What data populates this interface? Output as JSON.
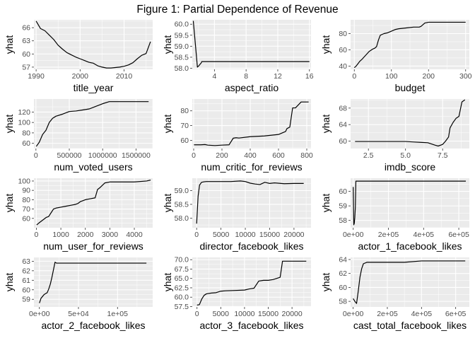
{
  "title": "Figure 1: Partial Dependence of Revenue",
  "colors": {
    "panel_bg": "#ebebeb",
    "grid": "#ffffff",
    "line": "#000000",
    "tick_text": "#4d4d4d"
  },
  "chart_data": [
    {
      "type": "line",
      "xlabel": "title_year",
      "ylabel": "yhat",
      "xlim": [
        1989.5,
        2016.5
      ],
      "ylim": [
        56.5,
        67.8
      ],
      "xticks": [
        1990,
        2000,
        2010
      ],
      "xtick_labels": [
        "1990",
        "2000",
        "2010"
      ],
      "yticks": [
        57,
        60,
        63,
        66
      ],
      "ytick_labels": [
        "57",
        "60",
        "63",
        "66"
      ],
      "x": [
        1990,
        1991,
        1992,
        1993,
        1994,
        1995,
        1996,
        1997,
        1998,
        1999,
        2000,
        2001,
        2002,
        2003,
        2004,
        2005,
        2006,
        2007,
        2008,
        2009,
        2010,
        2011,
        2012,
        2013,
        2014,
        2015,
        2016
      ],
      "y": [
        67.5,
        65.8,
        65.3,
        64.3,
        63.3,
        62.0,
        61.1,
        60.3,
        59.8,
        59.3,
        58.9,
        58.5,
        58.1,
        57.9,
        57.3,
        57.0,
        56.8,
        56.8,
        56.9,
        57.0,
        57.2,
        57.5,
        58.0,
        58.9,
        59.7,
        60.1,
        62.8
      ]
    },
    {
      "type": "line",
      "xlabel": "aspect_ratio",
      "ylabel": "yhat",
      "xlim": [
        1.2,
        16.2
      ],
      "ylim": [
        57.95,
        60.2
      ],
      "xticks": [
        4,
        8,
        12,
        16
      ],
      "xtick_labels": [
        "4",
        "8",
        "12",
        "16"
      ],
      "yticks": [
        58.0,
        58.5,
        59.0,
        59.5,
        60.0
      ],
      "ytick_labels": [
        "58.0",
        "58.5",
        "59.0",
        "59.5",
        "60.0"
      ],
      "x": [
        1.33,
        1.85,
        2.0,
        2.35,
        2.39,
        2.55,
        4.0,
        16.0
      ],
      "y": [
        60.15,
        58.05,
        58.1,
        58.25,
        58.3,
        58.3,
        58.3,
        58.3
      ]
    },
    {
      "type": "line",
      "xlabel": "budget",
      "ylabel": "yhat",
      "xlim": [
        -10,
        310
      ],
      "ylim": [
        36,
        97
      ],
      "xticks": [
        0,
        100,
        200,
        300
      ],
      "xtick_labels": [
        "0",
        "100",
        "200",
        "300"
      ],
      "yticks": [
        40,
        60,
        80
      ],
      "ytick_labels": [
        "40",
        "60",
        "80"
      ],
      "x": [
        0,
        5,
        10,
        15,
        20,
        30,
        40,
        50,
        55,
        60,
        65,
        70,
        80,
        90,
        100,
        110,
        120,
        140,
        160,
        175,
        180,
        190,
        200,
        250,
        300
      ],
      "y": [
        38,
        40,
        43,
        46,
        48,
        53,
        58,
        61,
        62,
        64,
        72,
        78,
        80,
        81,
        83,
        85,
        86,
        87,
        88,
        88,
        89,
        93,
        94,
        94,
        94
      ]
    },
    {
      "type": "line",
      "xlabel": "num_voted_users",
      "ylabel": "yhat",
      "xlim": [
        -30000,
        1750000
      ],
      "ylim": [
        50,
        145
      ],
      "xticks": [
        0,
        500000,
        1000000,
        1500000
      ],
      "xtick_labels": [
        "0",
        "500000",
        "1000000",
        "1500000"
      ],
      "yticks": [
        60,
        80,
        100,
        120
      ],
      "ytick_labels": [
        "60",
        "80",
        "100",
        "120"
      ],
      "x": [
        5000,
        50000,
        100000,
        150000,
        200000,
        250000,
        300000,
        400000,
        500000,
        600000,
        700000,
        800000,
        900000,
        1000000,
        1100000,
        1200000,
        1689000
      ],
      "y": [
        54,
        62,
        77,
        85,
        100,
        108,
        112,
        116,
        121,
        122,
        124,
        126,
        131,
        136,
        140,
        140,
        140
      ]
    },
    {
      "type": "line",
      "xlabel": "num_critic_for_reviews",
      "ylabel": "yhat",
      "xlim": [
        -10,
        830
      ],
      "ylim": [
        54.5,
        88
      ],
      "xticks": [
        0,
        200,
        400,
        600,
        800
      ],
      "xtick_labels": [
        "0",
        "200",
        "400",
        "600",
        "800"
      ],
      "yticks": [
        60,
        70,
        80
      ],
      "ytick_labels": [
        "60",
        "70",
        "80"
      ],
      "x": [
        2,
        50,
        80,
        100,
        150,
        200,
        250,
        280,
        300,
        320,
        400,
        500,
        600,
        650,
        660,
        680,
        700,
        720,
        760,
        813
      ],
      "y": [
        57,
        57,
        57.2,
        56.8,
        56.5,
        56.8,
        57,
        61.5,
        61.8,
        61.6,
        62.5,
        63,
        64,
        66,
        68,
        69,
        82,
        82,
        86,
        86
      ]
    },
    {
      "type": "line",
      "xlabel": "imdb_score",
      "ylabel": "yhat",
      "xlim": [
        1.3,
        9.3
      ],
      "ylim": [
        58.2,
        70.2
      ],
      "xticks": [
        2.5,
        5.0,
        7.5
      ],
      "xtick_labels": [
        "2.5",
        "5.0",
        "7.5"
      ],
      "yticks": [
        60,
        64,
        68
      ],
      "ytick_labels": [
        "60",
        "64",
        "68"
      ],
      "x": [
        1.6,
        2.5,
        3.5,
        4.5,
        5.0,
        5.5,
        6.0,
        6.5,
        7.0,
        7.2,
        7.5,
        7.7,
        7.9,
        8.0,
        8.2,
        8.4,
        8.6,
        8.8,
        9.0
      ],
      "y": [
        59.9,
        59.9,
        59.9,
        59.9,
        59.9,
        59.8,
        59.7,
        59.6,
        59.0,
        58.8,
        59.2,
        60.0,
        61.0,
        63.2,
        64.5,
        65.5,
        66.0,
        69.5,
        70.0
      ]
    },
    {
      "type": "line",
      "xlabel": "num_user_for_reviews",
      "ylabel": "yhat",
      "xlim": [
        -100,
        4750
      ],
      "ylim": [
        50,
        103
      ],
      "xticks": [
        0,
        1000,
        2000,
        3000,
        4000
      ],
      "xtick_labels": [
        "0",
        "1000",
        "2000",
        "3000",
        "4000"
      ],
      "yticks": [
        60,
        70,
        80,
        90,
        100
      ],
      "ytick_labels": [
        "60",
        "70",
        "80",
        "90",
        "100"
      ],
      "x": [
        10,
        100,
        200,
        300,
        400,
        500,
        600,
        700,
        800,
        1000,
        1200,
        1400,
        1600,
        1700,
        1800,
        2000,
        2200,
        2400,
        2500,
        2600,
        2800,
        3000,
        3500,
        4000,
        4500,
        4667
      ],
      "y": [
        53,
        55,
        57,
        59,
        61,
        62,
        66,
        70,
        71,
        72,
        73,
        74,
        75,
        76,
        78,
        80,
        81,
        82,
        91,
        93,
        98,
        99,
        99,
        99,
        100,
        101
      ]
    },
    {
      "type": "line",
      "xlabel": "director_facebook_likes",
      "ylabel": "yhat",
      "xlim": [
        -900,
        23500
      ],
      "ylim": [
        57.65,
        59.45
      ],
      "xticks": [
        0,
        5000,
        10000,
        15000,
        20000
      ],
      "xtick_labels": [
        "0",
        "5000",
        "10000",
        "15000",
        "20000"
      ],
      "yticks": [
        58.0,
        58.5,
        59.0
      ],
      "ytick_labels": [
        "58.0",
        "58.5",
        "59.0"
      ],
      "x": [
        0,
        300,
        600,
        1000,
        1500,
        2000,
        3000,
        5000,
        7000,
        9000,
        10000,
        11000,
        12000,
        13000,
        14000,
        15000,
        16000,
        18000,
        20000,
        22000
      ],
      "y": [
        57.8,
        58.8,
        59.2,
        59.3,
        59.32,
        59.33,
        59.33,
        59.33,
        59.33,
        59.35,
        59.33,
        59.27,
        59.24,
        59.22,
        59.3,
        59.26,
        59.28,
        59.25,
        59.26,
        59.26
      ]
    },
    {
      "type": "line",
      "xlabel": "actor_1_facebook_likes",
      "ylabel": "yhat",
      "xlim": [
        -15000,
        660000
      ],
      "ylim": [
        57.5,
        60.9
      ],
      "xticks": [
        0,
        200000,
        400000,
        600000
      ],
      "xtick_labels": [
        "0e+00",
        "2e+05",
        "4e+05",
        "6e+05"
      ],
      "yticks": [
        58,
        59,
        60
      ],
      "ytick_labels": [
        "58",
        "59",
        "60"
      ],
      "x": [
        0,
        3000,
        6000,
        9000,
        12000,
        15000,
        20000,
        50000,
        100000,
        640000
      ],
      "y": [
        60.3,
        57.7,
        57.8,
        58.2,
        58.9,
        60.7,
        60.7,
        60.7,
        60.7,
        60.7
      ]
    },
    {
      "type": "line",
      "xlabel": "actor_2_facebook_likes",
      "ylabel": "yhat",
      "xlim": [
        -7000,
        145000
      ],
      "ylim": [
        58.2,
        63.4
      ],
      "xticks": [
        0,
        50000,
        100000
      ],
      "xtick_labels": [
        "0e+00",
        "5e+04",
        "1e+05"
      ],
      "yticks": [
        59,
        60,
        61,
        62,
        63
      ],
      "ytick_labels": [
        "59",
        "60",
        "61",
        "62",
        "63"
      ],
      "x": [
        0,
        2000,
        4000,
        6000,
        8000,
        10000,
        12000,
        14000,
        16000,
        18000,
        20000,
        22000,
        25000,
        50000,
        100000,
        137000
      ],
      "y": [
        58.6,
        59.1,
        59.3,
        59.5,
        59.6,
        59.7,
        60.1,
        60.6,
        61.3,
        62.1,
        62.9,
        62.8,
        62.8,
        62.8,
        62.8,
        62.8
      ]
    },
    {
      "type": "line",
      "xlabel": "actor_3_facebook_likes",
      "ylabel": "yhat",
      "xlim": [
        -1000,
        24000
      ],
      "ylim": [
        57.4,
        70.6
      ],
      "xticks": [
        0,
        5000,
        10000,
        15000,
        20000
      ],
      "xtick_labels": [
        "0",
        "5000",
        "10000",
        "15000",
        "20000"
      ],
      "yticks": [
        57.5,
        60.0,
        62.5,
        65.0,
        67.5,
        70.0
      ],
      "ytick_labels": [
        "57.5",
        "60.0",
        "62.5",
        "65.0",
        "67.5",
        "70.0"
      ],
      "x": [
        0,
        500,
        1000,
        1500,
        2000,
        3000,
        4000,
        5000,
        6000,
        8000,
        10000,
        11000,
        12000,
        13000,
        14000,
        15000,
        16000,
        17000,
        17500,
        18000,
        19000,
        20000,
        23000
      ],
      "y": [
        57.9,
        58.0,
        59.5,
        60.5,
        60.9,
        61.1,
        61.2,
        61.6,
        61.7,
        61.8,
        61.9,
        62.2,
        62.4,
        64.3,
        64.5,
        64.5,
        64.7,
        65.1,
        65.3,
        69.6,
        69.6,
        69.6,
        69.6
      ]
    },
    {
      "type": "line",
      "xlabel": "cast_total_facebook_likes",
      "ylabel": "yhat",
      "xlim": [
        -15000,
        680000
      ],
      "ylim": [
        57.2,
        64.3
      ],
      "xticks": [
        0,
        200000,
        400000,
        600000
      ],
      "xtick_labels": [
        "0e+00",
        "2e+05",
        "4e+05",
        "6e+05"
      ],
      "yticks": [
        58,
        60,
        62,
        64
      ],
      "ytick_labels": [
        "58",
        "60",
        "62",
        "64"
      ],
      "x": [
        0,
        10000,
        20000,
        30000,
        40000,
        50000,
        60000,
        80000,
        100000,
        200000,
        300000,
        400000,
        500000,
        656000
      ],
      "y": [
        58.4,
        58.0,
        57.7,
        59.5,
        61.5,
        62.7,
        63.4,
        63.6,
        63.6,
        63.6,
        63.6,
        63.8,
        63.8,
        63.8
      ]
    }
  ]
}
